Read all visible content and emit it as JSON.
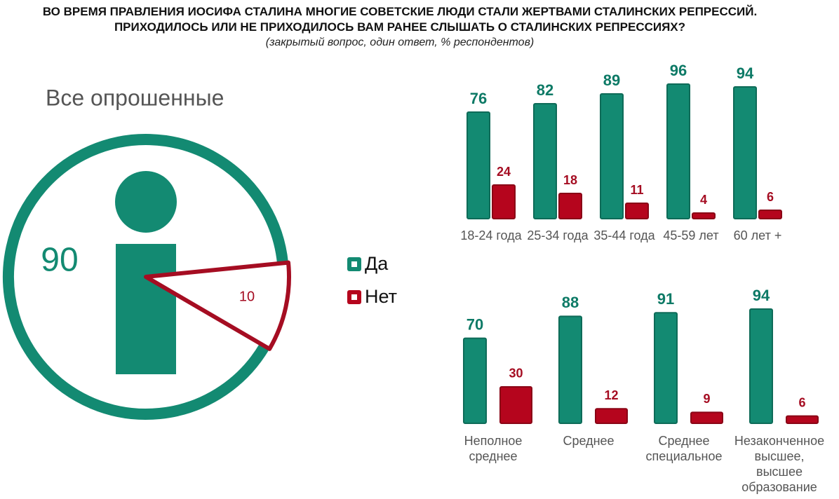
{
  "title": "ВО ВРЕМЯ ПРАВЛЕНИЯ ИОСИФА СТАЛИНА МНОГИЕ СОВЕТСКИЕ ЛЮДИ СТАЛИ ЖЕРТВАМИ СТАЛИНСКИХ РЕПРЕССИЙ. ПРИХОДИЛОСЬ ИЛИ НЕ ПРИХОДИЛОСЬ ВАМ РАНЕЕ СЛЫШАТЬ О СТАЛИНСКИХ РЕПРЕССИЯХ?",
  "subtitle": "(закрытый вопрос, один ответ, % респондентов)",
  "chart_data": [
    {
      "type": "pie",
      "title": "Все опрошенные",
      "values": [
        90,
        10
      ],
      "colors": [
        "#138a72",
        "#a50d22"
      ]
    },
    {
      "type": "bar",
      "categories": [
        "18-24 года",
        "25-34 года",
        "35-44 года",
        "45-59 лет",
        "60 лет +"
      ],
      "series": [
        {
          "name": "Да",
          "color": "#138a72",
          "values": [
            76,
            82,
            89,
            96,
            94
          ]
        },
        {
          "name": "Нет",
          "color": "#b5051d",
          "values": [
            24,
            18,
            11,
            4,
            6
          ]
        }
      ]
    },
    {
      "type": "bar",
      "categories": [
        "Неполное среднее",
        "Среднее",
        "Среднее специальное",
        "Незаконченное высшее, высшее образование"
      ],
      "series": [
        {
          "color": "#138a72",
          "values": [
            70,
            88,
            91,
            94
          ]
        },
        {
          "color": "#b5051d",
          "values": [
            30,
            12,
            9,
            6
          ]
        }
      ]
    }
  ]
}
